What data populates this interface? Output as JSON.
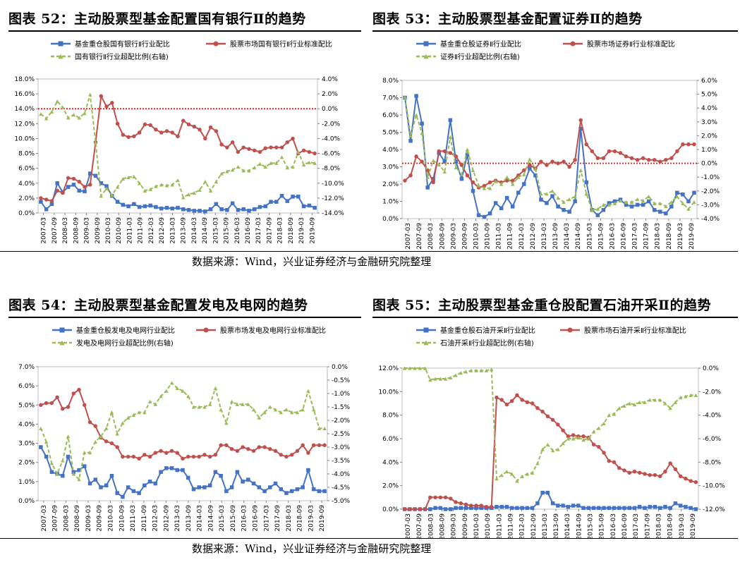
{
  "layout_note": "",
  "source_top": "数据来源：Wind，兴业证券经济与金融研究院整理",
  "source_bottom": "数据来源：Wind，兴业证券经济与金融研究院整理",
  "colors": {
    "blue": "#4472C4",
    "red": "#C0504D",
    "green": "#9BBB59",
    "dotted": "#FF0000"
  },
  "xticks": [
    "2007-03",
    "2007-09",
    "2008-03",
    "2008-09",
    "2009-03",
    "2009-09",
    "2010-03",
    "2010-09",
    "2011-03",
    "2011-09",
    "2012-03",
    "2012-09",
    "2013-03",
    "2013-09",
    "2014-03",
    "2014-09",
    "2015-03",
    "2015-09",
    "2016-03",
    "2016-09",
    "2017-03",
    "2017-09",
    "2018-03",
    "2018-09",
    "2019-03",
    "2019-09"
  ],
  "chart_data": [
    {
      "type": "line",
      "title": "图表 52：主动股票型基金配置国有银行Ⅱ的趋势",
      "legend": [
        "基金重仓股国有银行Ⅱ行业配比",
        "股票市场国有银行Ⅱ行业标准配比",
        "国有银行Ⅱ行业超配比例(右轴)"
      ],
      "left_axis": {
        "min": 0,
        "max": 18,
        "step": 2,
        "ticks": [
          "0.0%",
          "2.0%",
          "4.0%",
          "6.0%",
          "8.0%",
          "10.0%",
          "12.0%",
          "14.0%",
          "16.0%",
          "18.0%"
        ]
      },
      "right_axis": {
        "min": -14,
        "max": 4,
        "step": 2,
        "ticks": [
          "-14.0%",
          "-12.0%",
          "-10.0%",
          "-8.0%",
          "-6.0%",
          "-4.0%",
          "-2.0%",
          "0.0%",
          "2.0%",
          "4.0%"
        ]
      },
      "zero_line_right": 0,
      "series": [
        {
          "name": "基金重仓股国有银行Ⅱ行业配比",
          "axis": "left",
          "values": [
            1.5,
            0.5,
            1.2,
            4.0,
            2.8,
            3.5,
            3.8,
            3.0,
            2.9,
            5.3,
            5.0,
            4.0,
            3.6,
            2.3,
            1.5,
            1.1,
            0.9,
            1.2,
            0.8,
            0.9,
            1.0,
            0.8,
            0.6,
            0.7,
            0.6,
            0.7,
            0.5,
            0.4,
            0.3,
            0.3,
            0.2,
            0.5,
            1.2,
            0.5,
            0.4,
            1.3,
            0.4,
            0.5,
            0.3,
            0.5,
            0.8,
            0.9,
            1.5,
            1.5,
            2.3,
            1.6,
            2.2,
            2.2,
            0.9,
            1.0,
            0.7
          ]
        },
        {
          "name": "股票市场国有银行Ⅱ行业标准配比",
          "axis": "left",
          "values": [
            2.0,
            1.8,
            1.6,
            3.0,
            2.7,
            4.7,
            4.6,
            4.2,
            3.5,
            3.8,
            9.5,
            15.7,
            14.3,
            14.8,
            12.0,
            10.5,
            10.2,
            10.3,
            10.8,
            11.9,
            11.8,
            11.2,
            10.8,
            11.0,
            10.8,
            10.3,
            12.4,
            11.9,
            11.6,
            11.2,
            10.0,
            11.5,
            11.0,
            9.2,
            8.8,
            9.5,
            8.2,
            8.8,
            8.6,
            8.4,
            8.2,
            8.7,
            8.8,
            8.8,
            8.8,
            9.5,
            10.0,
            8.0,
            8.4,
            8.2,
            8.0
          ]
        },
        {
          "name": "国有银行Ⅱ行业超配比例(右轴)",
          "axis": "right",
          "values": [
            -0.7,
            -1.3,
            -0.4,
            1.0,
            0.2,
            -1.2,
            -0.8,
            -1.2,
            -0.6,
            1.9,
            -4.5,
            -11.7,
            -10.7,
            -11.6,
            -10.5,
            -9.4,
            -9.2,
            -9.1,
            -10.0,
            -11.0,
            -10.8,
            -10.4,
            -10.2,
            -10.3,
            -10.2,
            -9.6,
            -11.9,
            -11.5,
            -11.3,
            -10.9,
            -9.8,
            -11.0,
            -9.8,
            -8.7,
            -8.4,
            -8.2,
            -7.8,
            -8.3,
            -8.3,
            -7.9,
            -7.4,
            -7.8,
            -7.3,
            -7.3,
            -6.5,
            -7.9,
            -7.8,
            -5.8,
            -7.5,
            -7.2,
            -7.3
          ]
        }
      ]
    },
    {
      "type": "line",
      "title": "图表 53：主动股票型基金配置证券Ⅱ的趋势",
      "legend": [
        "基金重仓股证券Ⅱ行业配比",
        "股票市场证券Ⅱ行业标准配比",
        "证券Ⅱ行业超配比例(右轴)"
      ],
      "left_axis": {
        "min": 0,
        "max": 8,
        "step": 1,
        "ticks": [
          "0.0%",
          "1.0%",
          "2.0%",
          "3.0%",
          "4.0%",
          "5.0%",
          "6.0%",
          "7.0%",
          "8.0%"
        ]
      },
      "right_axis": {
        "min": -4,
        "max": 6,
        "step": 1,
        "ticks": [
          "-4.0%",
          "-3.0%",
          "-2.0%",
          "-1.0%",
          "0.0%",
          "1.0%",
          "2.0%",
          "3.0%",
          "4.0%",
          "5.0%",
          "6.0%"
        ]
      },
      "zero_line_right": 0,
      "series": [
        {
          "name": "基金重仓股证券Ⅱ行业配比",
          "axis": "left",
          "values": [
            7.0,
            4.5,
            7.1,
            5.5,
            1.8,
            2.3,
            3.8,
            3.3,
            5.7,
            3.3,
            2.3,
            3.7,
            1.6,
            0.2,
            0.1,
            0.3,
            0.9,
            0.6,
            1.2,
            0.7,
            1.5,
            2.0,
            2.9,
            2.5,
            1.1,
            0.9,
            1.3,
            0.7,
            0.5,
            0.4,
            1.0,
            5.2,
            2.1,
            0.5,
            0.2,
            0.5,
            0.9,
            1.0,
            1.1,
            0.8,
            0.7,
            0.8,
            0.8,
            1.0,
            0.5,
            0.4,
            0.3,
            0.7,
            1.5,
            1.4,
            1.0,
            1.5
          ]
        },
        {
          "name": "股票市场证券Ⅱ行业标准配比",
          "axis": "left",
          "values": [
            2.2,
            2.5,
            3.6,
            3.3,
            2.8,
            2.1,
            3.9,
            3.9,
            3.8,
            3.6,
            3.1,
            2.5,
            2.1,
            1.8,
            1.9,
            2.1,
            2.2,
            2.1,
            2.2,
            2.2,
            2.5,
            2.8,
            3.1,
            2.9,
            3.3,
            3.1,
            3.3,
            3.2,
            3.3,
            3.0,
            3.4,
            5.7,
            4.3,
            3.9,
            3.5,
            3.5,
            3.9,
            3.9,
            3.8,
            3.6,
            3.5,
            3.4,
            3.5,
            3.4,
            3.4,
            3.3,
            3.4,
            3.5,
            3.9,
            4.3,
            4.3,
            4.3
          ]
        },
        {
          "name": "证券Ⅱ行业超配比例(右轴)",
          "axis": "right",
          "values": [
            4.8,
            2.0,
            3.5,
            2.2,
            -1.0,
            0.2,
            -0.1,
            -0.6,
            1.9,
            -0.3,
            -0.8,
            1.0,
            -0.5,
            -1.6,
            -1.8,
            -1.8,
            -1.3,
            -1.5,
            -1.0,
            -1.5,
            -1.0,
            -0.8,
            0.3,
            -0.4,
            -2.2,
            -2.2,
            -2.0,
            -2.5,
            -2.8,
            -2.6,
            -2.4,
            -0.5,
            -2.2,
            -3.4,
            -3.3,
            -3.0,
            -3.0,
            -2.9,
            -2.7,
            -2.8,
            -2.8,
            -2.6,
            -2.7,
            -2.4,
            -2.9,
            -2.9,
            -3.1,
            -2.8,
            -2.4,
            -2.9,
            -3.3,
            -2.8
          ]
        }
      ]
    },
    {
      "type": "line",
      "title": "图表 54：主动股票型基金配置发电及电网的趋势",
      "legend": [
        "基金重仓股发电及电网行业配比",
        "股票市场发电及电网行业标准配比",
        "发电及电网行业超配比例(右轴)"
      ],
      "left_axis": {
        "min": 0,
        "max": 7,
        "step": 1,
        "ticks": [
          "0.0%",
          "1.0%",
          "2.0%",
          "3.0%",
          "4.0%",
          "5.0%",
          "6.0%",
          "7.0%"
        ]
      },
      "right_axis": {
        "min": -5,
        "max": 0,
        "step": 0.5,
        "ticks": [
          "-5.0%",
          "-4.5%",
          "-4.0%",
          "-3.5%",
          "-3.0%",
          "-2.5%",
          "-2.0%",
          "-1.5%",
          "-1.0%",
          "-0.5%",
          "0.0%"
        ]
      },
      "series": [
        {
          "name": "基金重仓股发电及电网行业配比",
          "axis": "left",
          "values": [
            2.8,
            2.3,
            1.5,
            1.4,
            1.3,
            2.3,
            1.5,
            1.6,
            1.8,
            0.9,
            1.1,
            0.7,
            0.8,
            1.3,
            0.4,
            0.2,
            0.7,
            0.5,
            0.4,
            0.8,
            1.0,
            0.9,
            1.5,
            1.7,
            1.7,
            1.6,
            1.6,
            1.2,
            0.6,
            0.7,
            0.7,
            0.8,
            1.5,
            1.3,
            0.5,
            0.7,
            1.5,
            1.0,
            1.1,
            0.9,
            0.7,
            0.5,
            0.7,
            0.9,
            0.6,
            0.4,
            0.5,
            0.6,
            0.7,
            1.6,
            0.6,
            0.5,
            0.5
          ]
        },
        {
          "name": "股票市场发电及电网行业标准配比",
          "axis": "left",
          "values": [
            5.0,
            5.1,
            5.1,
            5.4,
            4.8,
            4.9,
            5.6,
            5.8,
            5.0,
            4.1,
            3.9,
            3.3,
            3.1,
            3.0,
            2.8,
            2.3,
            2.3,
            2.3,
            2.2,
            2.4,
            2.3,
            2.5,
            2.6,
            2.5,
            2.6,
            2.5,
            2.2,
            2.3,
            2.3,
            2.3,
            2.4,
            2.3,
            2.4,
            2.9,
            2.9,
            2.7,
            2.6,
            2.8,
            2.7,
            2.6,
            2.8,
            2.8,
            2.7,
            2.6,
            2.4,
            2.3,
            2.4,
            2.6,
            2.9,
            2.5,
            2.9,
            2.9,
            2.9
          ]
        },
        {
          "name": "发电及电网行业超配比例(右轴)",
          "axis": "right",
          "values": [
            -2.3,
            -2.8,
            -3.6,
            -4.0,
            -3.5,
            -2.6,
            -4.0,
            -4.2,
            -3.2,
            -3.2,
            -2.8,
            -2.6,
            -2.3,
            -1.7,
            -2.5,
            -2.1,
            -1.9,
            -1.8,
            -1.7,
            -1.7,
            -1.3,
            -1.4,
            -1.1,
            -0.9,
            -0.6,
            -0.8,
            -0.9,
            -1.1,
            -1.5,
            -1.5,
            -1.5,
            -1.4,
            -0.8,
            -1.6,
            -2.1,
            -1.3,
            -1.4,
            -1.4,
            -1.4,
            -1.6,
            -1.9,
            -1.7,
            -1.5,
            -1.6,
            -1.7,
            -1.6,
            -1.7,
            -1.7,
            -1.6,
            -0.9,
            -1.6,
            -2.3,
            -2.3
          ]
        }
      ]
    },
    {
      "type": "line",
      "title": "图表 55：主动股票型基金重仓股配置石油开采Ⅱ的趋势",
      "legend": [
        "基金重仓股石油开采Ⅱ行业配比",
        "股票市场石油开采Ⅱ行业标准配比",
        "石油开采Ⅱ行业超配比例(右轴)"
      ],
      "left_axis": {
        "min": 0,
        "max": 12,
        "step": 2,
        "ticks": [
          "0.0%",
          "2.0%",
          "4.0%",
          "6.0%",
          "8.0%",
          "10.0%",
          "12.0%"
        ]
      },
      "right_axis": {
        "min": -12,
        "max": 0,
        "step": 2,
        "ticks": [
          "-12.0%",
          "-10.0%",
          "-8.0%",
          "-6.0%",
          "-4.0%",
          "-2.0%",
          "0.0%"
        ]
      },
      "series": [
        {
          "name": "基金重仓股石油开采Ⅱ行业配比",
          "axis": "left",
          "values": [
            0.0,
            0.0,
            0.0,
            0.0,
            0.0,
            0.0,
            0.1,
            0.1,
            0.0,
            0.0,
            0.1,
            0.1,
            0.1,
            0.1,
            0.1,
            0.1,
            0.1,
            0.1,
            0.2,
            0.2,
            0.2,
            0.1,
            0.1,
            0.1,
            0.1,
            0.1,
            0.5,
            1.4,
            1.4,
            0.5,
            0.3,
            0.3,
            0.2,
            0.3,
            0.3,
            0.1,
            0.1,
            0.1,
            0.1,
            0.1,
            0.1,
            0.1,
            0.1,
            0.1,
            0.1,
            0.1,
            0.2,
            0.1,
            0.2,
            0.2,
            0.1,
            0.2,
            0.1,
            0.5,
            0.3,
            0.2,
            0.1,
            0.0
          ]
        },
        {
          "name": "股票市场石油开采Ⅱ行业标准配比",
          "axis": "left",
          "values": [
            0.0,
            0.0,
            0.0,
            0.0,
            0.0,
            1.0,
            1.0,
            1.0,
            1.0,
            0.9,
            0.6,
            0.5,
            0.4,
            0.3,
            0.3,
            0.3,
            0.2,
            0.2,
            9.5,
            9.3,
            8.9,
            9.2,
            9.7,
            9.3,
            9.1,
            9.0,
            8.6,
            8.3,
            7.9,
            7.6,
            7.2,
            6.7,
            6.2,
            6.3,
            6.2,
            6.2,
            6.1,
            5.5,
            5.3,
            4.8,
            4.1,
            4.0,
            3.5,
            3.3,
            3.1,
            3.2,
            3.1,
            3.0,
            2.9,
            2.9,
            2.8,
            3.2,
            3.9,
            3.4,
            2.8,
            2.6,
            2.4,
            2.3
          ]
        },
        {
          "name": "石油开采Ⅱ行业超配比例(右轴)",
          "axis": "right",
          "values": [
            0.0,
            0.0,
            0.0,
            0.0,
            0.0,
            -1.0,
            -0.9,
            -0.9,
            -0.9,
            -0.8,
            -0.6,
            -0.4,
            -0.3,
            -0.2,
            -0.2,
            -0.2,
            -0.2,
            -0.1,
            -9.4,
            -9.1,
            -8.8,
            -9.0,
            -9.6,
            -9.2,
            -9.0,
            -8.9,
            -8.1,
            -6.9,
            -6.5,
            -7.0,
            -6.9,
            -6.4,
            -6.0,
            -6.0,
            -5.9,
            -6.1,
            -6.0,
            -5.4,
            -5.1,
            -4.7,
            -4.0,
            -3.9,
            -3.4,
            -3.2,
            -3.0,
            -3.1,
            -2.9,
            -2.9,
            -2.7,
            -2.7,
            -2.7,
            -3.0,
            -3.4,
            -2.9,
            -2.5,
            -2.4,
            -2.3,
            -2.3
          ]
        }
      ]
    }
  ]
}
